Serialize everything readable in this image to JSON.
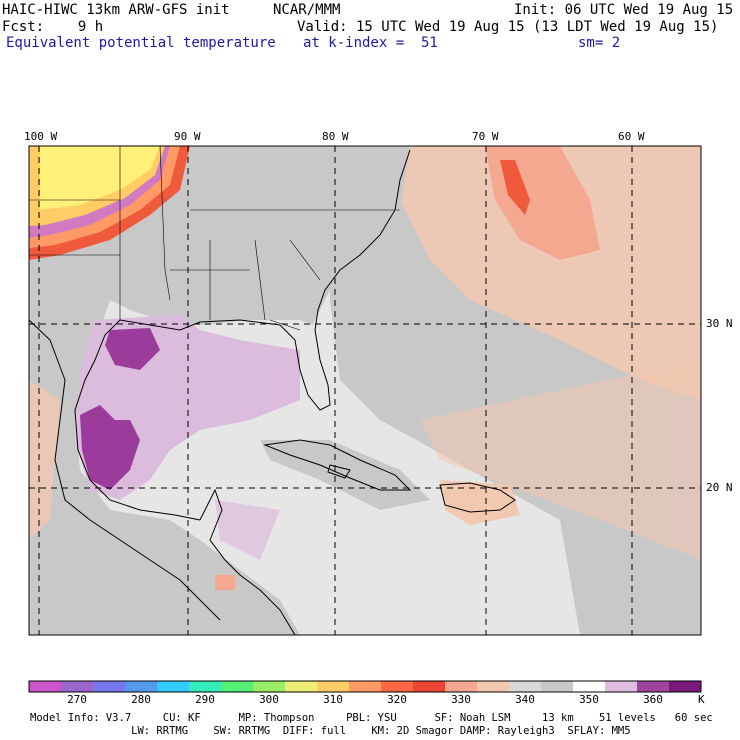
{
  "header": {
    "model_title": "HAIC-HIWC 13km ARW-GFS init",
    "org": "NCAR/MMM",
    "init": "Init: 06 UTC Wed 19 Aug 15",
    "fcst": "Fcst:    9 h",
    "valid": "Valid: 15 UTC Wed 19 Aug 15 (13 LDT Wed 19 Aug 15)",
    "field": "Equivalent potential temperature",
    "level": "at k-index =  51",
    "smooth": "sm= 2"
  },
  "map": {
    "lon_labels": [
      "100 W",
      "90 W",
      "80 W",
      "70 W",
      "60 W"
    ],
    "lat_labels": [
      "30 N",
      "20 N"
    ],
    "colors": {
      "land_gray": "#c8c8c8",
      "ocean_light": "#e6e6e6",
      "pale_violet": "#dcbcdc",
      "purple": "#9b3b9b",
      "peach": "#f3c8b0",
      "salmon": "#f5a890",
      "red": "#ef5a3c",
      "yellow": "#fff07a"
    }
  },
  "colorbar": {
    "labels": [
      "270",
      "280",
      "290",
      "300",
      "310",
      "320",
      "330",
      "340",
      "350",
      "360"
    ],
    "unit": "K",
    "colors": [
      "#cc55cc",
      "#9966cc",
      "#7777ee",
      "#5599ee",
      "#33ccff",
      "#33eebb",
      "#55ee77",
      "#99ee66",
      "#eeee77",
      "#ffcc66",
      "#ff9966",
      "#ff6644",
      "#ee4433",
      "#f5a890",
      "#f3c8b0",
      "#d8d8d8",
      "#c8c8c8",
      "#ffffff",
      "#e0bce0",
      "#a044a0",
      "#7a1a7a"
    ]
  },
  "footer": {
    "line1": "Model Info: V3.7     CU: KF      MP: Thompson     PBL: YSU      SF: Noah LSM     13 km    51 levels   60 sec",
    "line2": "                LW: RRTMG    SW: RRTMG  DIFF: full    KM: 2D Smagor DAMP: Rayleigh3  SFLAY: MM5"
  }
}
